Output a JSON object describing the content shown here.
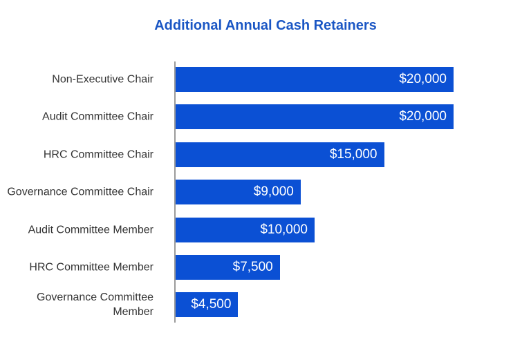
{
  "chart_data": {
    "type": "bar",
    "orientation": "horizontal",
    "title": "Additional Annual Cash Retainers",
    "categories": [
      "Non-Executive Chair",
      "Audit Committee Chair",
      "HRC Committee Chair",
      "Governance Committee Chair",
      "Audit Committee Member",
      "HRC Committee Member",
      "Governance Committee Member"
    ],
    "values": [
      20000,
      20000,
      15000,
      9000,
      10000,
      7500,
      4500
    ],
    "value_labels": [
      "$20,000",
      "$20,000",
      "$15,000",
      "$9,000",
      "$10,000",
      "$7,500",
      "$4,500"
    ],
    "color": "#0b50d4"
  }
}
